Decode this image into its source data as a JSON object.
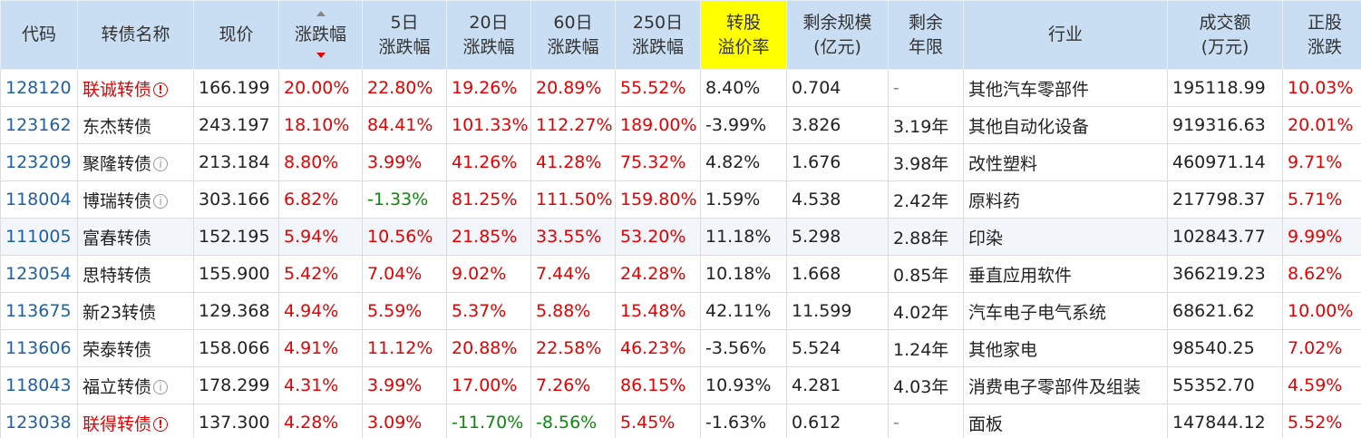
{
  "headers": [
    {
      "label": "代码"
    },
    {
      "label": "转债名称"
    },
    {
      "label": "现价"
    },
    {
      "label": "涨跌幅"
    },
    {
      "line1": "5日",
      "line2": "涨跌幅"
    },
    {
      "line1": "20日",
      "line2": "涨跌幅"
    },
    {
      "line1": "60日",
      "line2": "涨跌幅"
    },
    {
      "line1": "250日",
      "line2": "涨跌幅"
    },
    {
      "line1": "转股",
      "line2": "溢价率"
    },
    {
      "line1": "剩余规模",
      "line2": "(亿元)"
    },
    {
      "line1": "剩余",
      "line2": "年限"
    },
    {
      "label": "行业"
    },
    {
      "line1": "成交额",
      "line2": "(万元)"
    },
    {
      "line1": "正股",
      "line2": "涨跌"
    }
  ],
  "highlight_color": "#ffff00",
  "up_color": "#e60000",
  "down_color": "#0a8a0a",
  "rows": [
    {
      "code": "128120",
      "name": "联诚转债",
      "name_icon": "alert-icon",
      "price": "166.199",
      "chg": "20.00%",
      "d5": "22.80%",
      "d20": "19.26%",
      "d60": "20.89%",
      "d250": "55.52%",
      "premium": "8.40%",
      "scale": "0.704",
      "years": "-",
      "industry": "其他汽车零部件",
      "amount": "195118.99",
      "stock_chg": "10.03%"
    },
    {
      "code": "123162",
      "name": "东杰转债",
      "name_icon": "",
      "price": "243.197",
      "chg": "18.10%",
      "d5": "84.41%",
      "d20": "101.33%",
      "d60": "112.27%",
      "d250": "189.00%",
      "premium": "-3.99%",
      "scale": "3.826",
      "years": "3.19年",
      "industry": "其他自动化设备",
      "amount": "919316.63",
      "stock_chg": "20.01%"
    },
    {
      "code": "123209",
      "name": "聚隆转债",
      "name_icon": "info-icon",
      "price": "213.184",
      "chg": "8.80%",
      "d5": "3.99%",
      "d20": "41.26%",
      "d60": "41.28%",
      "d250": "75.32%",
      "premium": "4.82%",
      "scale": "1.676",
      "years": "3.98年",
      "industry": "改性塑料",
      "amount": "460971.14",
      "stock_chg": "9.71%"
    },
    {
      "code": "118004",
      "name": "博瑞转债",
      "name_icon": "info-icon",
      "price": "303.166",
      "chg": "6.82%",
      "d5": "-1.33%",
      "d20": "81.25%",
      "d60": "111.50%",
      "d250": "159.80%",
      "premium": "1.59%",
      "scale": "4.538",
      "years": "2.42年",
      "industry": "原料药",
      "amount": "217798.37",
      "stock_chg": "5.71%"
    },
    {
      "code": "111005",
      "name": "富春转债",
      "name_icon": "",
      "price": "152.195",
      "chg": "5.94%",
      "d5": "10.56%",
      "d20": "21.85%",
      "d60": "33.55%",
      "d250": "53.20%",
      "premium": "11.18%",
      "scale": "5.298",
      "years": "2.88年",
      "industry": "印染",
      "amount": "102843.77",
      "stock_chg": "9.99%"
    },
    {
      "code": "123054",
      "name": "思特转债",
      "name_icon": "",
      "price": "155.900",
      "chg": "5.42%",
      "d5": "7.04%",
      "d20": "9.02%",
      "d60": "7.44%",
      "d250": "24.28%",
      "premium": "10.18%",
      "scale": "1.668",
      "years": "0.85年",
      "industry": "垂直应用软件",
      "amount": "366219.23",
      "stock_chg": "8.62%"
    },
    {
      "code": "113675",
      "name": "新23转债",
      "name_icon": "",
      "price": "129.368",
      "chg": "4.94%",
      "d5": "5.59%",
      "d20": "5.37%",
      "d60": "5.88%",
      "d250": "15.48%",
      "premium": "42.11%",
      "scale": "11.599",
      "years": "4.02年",
      "industry": "汽车电子电气系统",
      "amount": "68621.62",
      "stock_chg": "10.00%"
    },
    {
      "code": "113606",
      "name": "荣泰转债",
      "name_icon": "",
      "price": "158.066",
      "chg": "4.91%",
      "d5": "11.12%",
      "d20": "20.88%",
      "d60": "22.58%",
      "d250": "46.23%",
      "premium": "-3.56%",
      "scale": "5.524",
      "years": "1.24年",
      "industry": "其他家电",
      "amount": "98540.25",
      "stock_chg": "7.02%"
    },
    {
      "code": "118043",
      "name": "福立转债",
      "name_icon": "info-icon",
      "price": "178.299",
      "chg": "4.31%",
      "d5": "3.99%",
      "d20": "17.00%",
      "d60": "7.26%",
      "d250": "86.15%",
      "premium": "10.93%",
      "scale": "4.281",
      "years": "4.03年",
      "industry": "消费电子零部件及组装",
      "amount": "55352.70",
      "stock_chg": "4.59%"
    },
    {
      "code": "123038",
      "name": "联得转债",
      "name_icon": "alert-icon",
      "price": "137.300",
      "chg": "4.28%",
      "d5": "3.09%",
      "d20": "-11.70%",
      "d60": "-8.56%",
      "d250": "5.45%",
      "premium": "-1.63%",
      "scale": "0.612",
      "years": "-",
      "industry": "面板",
      "amount": "147844.12",
      "stock_chg": "5.52%"
    }
  ]
}
